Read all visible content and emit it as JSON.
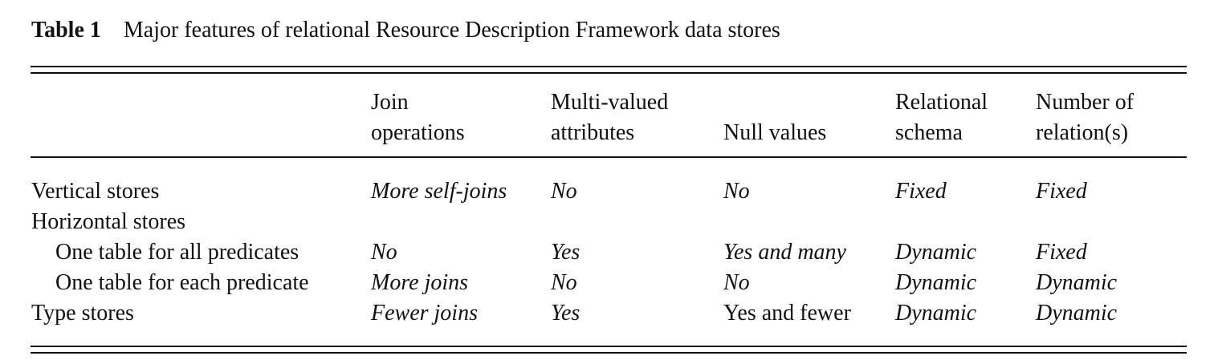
{
  "caption": {
    "label": "Table 1",
    "title": "Major features of relational Resource Description Framework data stores"
  },
  "columns": [
    {
      "line1": "Join",
      "line2": "operations"
    },
    {
      "line1": "Multi-valued",
      "line2": "attributes"
    },
    {
      "line1": "",
      "line2": "Null values"
    },
    {
      "line1": "Relational",
      "line2": "schema"
    },
    {
      "line1": "Number of",
      "line2": "relation(s)"
    }
  ],
  "rows": [
    {
      "label": "Vertical stores",
      "indent": false,
      "cells": [
        "More self-joins",
        "No",
        "No",
        "Fixed",
        "Fixed"
      ]
    },
    {
      "label": "Horizontal stores",
      "indent": false,
      "cells": [
        "",
        "",
        "",
        "",
        ""
      ]
    },
    {
      "label": "One table for all predicates",
      "indent": true,
      "cells": [
        "No",
        "Yes",
        "Yes and many",
        "Dynamic",
        "Fixed"
      ]
    },
    {
      "label": "One table for each predicate",
      "indent": true,
      "cells": [
        "More joins",
        "No",
        "No",
        "Dynamic",
        "Dynamic"
      ]
    },
    {
      "label": "Type stores",
      "indent": false,
      "cells": [
        "Fewer joins",
        "Yes",
        "Yes and fewer",
        "Dynamic",
        "Dynamic"
      ]
    }
  ]
}
